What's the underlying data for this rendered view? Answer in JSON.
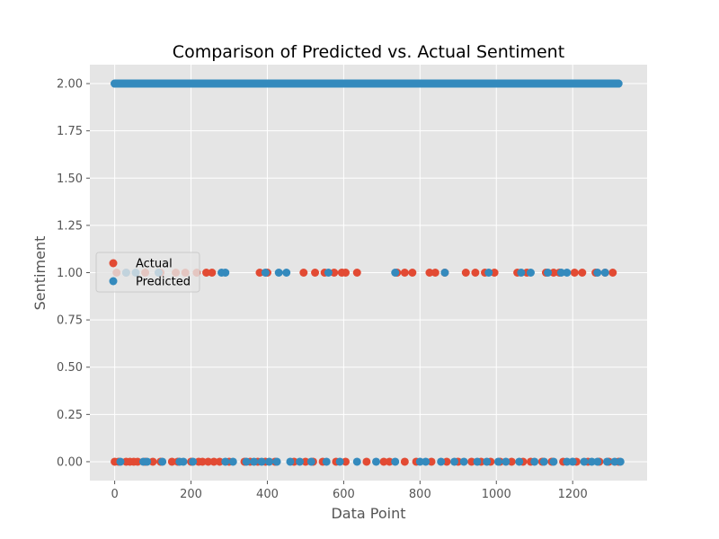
{
  "chart_data": {
    "type": "scatter",
    "title": "Comparison of Predicted vs. Actual Sentiment",
    "xlabel": "Data Point",
    "ylabel": "Sentiment",
    "xlim": [
      -65,
      1395
    ],
    "ylim": [
      -0.1,
      2.1
    ],
    "xticks": [
      0,
      200,
      400,
      600,
      800,
      1000,
      1200
    ],
    "yticks": [
      0.0,
      0.25,
      0.5,
      0.75,
      1.0,
      1.25,
      1.5,
      1.75,
      2.0
    ],
    "xtick_labels": [
      "0",
      "200",
      "400",
      "600",
      "800",
      "1000",
      "1200"
    ],
    "ytick_labels": [
      "0.00",
      "0.25",
      "0.50",
      "0.75",
      "1.00",
      "1.25",
      "1.50",
      "1.75",
      "2.00"
    ],
    "grid": true,
    "legend_position": "center-left",
    "colors": {
      "Actual": "#E24A33",
      "Predicted": "#348ABD",
      "background": "#E5E5E5",
      "grid": "#FFFFFF"
    },
    "series": [
      {
        "name": "Actual",
        "x": [
          5,
          30,
          80,
          120,
          160,
          185,
          215,
          240,
          255,
          380,
          400,
          495,
          525,
          550,
          575,
          595,
          605,
          635,
          740,
          760,
          780,
          825,
          840,
          865,
          920,
          945,
          970,
          995,
          1055,
          1080,
          1130,
          1150,
          1165,
          1205,
          1225,
          1260,
          1285,
          1305,
          0,
          10,
          30,
          40,
          50,
          60,
          80,
          100,
          120,
          150,
          165,
          200,
          220,
          230,
          245,
          260,
          275,
          300,
          340,
          355,
          375,
          395,
          420,
          470,
          500,
          520,
          545,
          580,
          605,
          660,
          705,
          720,
          760,
          790,
          830,
          870,
          900,
          935,
          960,
          985,
          1010,
          1040,
          1070,
          1090,
          1120,
          1145,
          1175,
          1210,
          1240,
          1270,
          1295,
          1320
        ],
        "y": [
          1,
          1,
          1,
          1,
          1,
          1,
          1,
          1,
          1,
          1,
          1,
          1,
          1,
          1,
          1,
          1,
          1,
          1,
          1,
          1,
          1,
          1,
          1,
          1,
          1,
          1,
          1,
          1,
          1,
          1,
          1,
          1,
          1,
          1,
          1,
          1,
          1,
          1,
          0,
          0,
          0,
          0,
          0,
          0,
          0,
          0,
          0,
          0,
          0,
          0,
          0,
          0,
          0,
          0,
          0,
          0,
          0,
          0,
          0,
          0,
          0,
          0,
          0,
          0,
          0,
          0,
          0,
          0,
          0,
          0,
          0,
          0,
          0,
          0,
          0,
          0,
          0,
          0,
          0,
          0,
          0,
          0,
          0,
          0,
          0,
          0,
          0,
          0,
          0,
          0
        ]
      },
      {
        "name": "Predicted",
        "x": [
          0,
          1320,
          30,
          55,
          115,
          280,
          290,
          395,
          430,
          450,
          560,
          735,
          865,
          980,
          1065,
          1090,
          1135,
          1170,
          1185,
          1265,
          1285,
          15,
          75,
          85,
          125,
          170,
          180,
          205,
          290,
          310,
          345,
          365,
          385,
          405,
          425,
          460,
          485,
          515,
          555,
          590,
          635,
          685,
          735,
          800,
          815,
          855,
          890,
          915,
          950,
          975,
          1005,
          1025,
          1060,
          1100,
          1125,
          1150,
          1185,
          1200,
          1230,
          1250,
          1265,
          1290,
          1310,
          1325
        ],
        "y": [
          2,
          2,
          1,
          1,
          1,
          1,
          1,
          1,
          1,
          1,
          1,
          1,
          1,
          1,
          1,
          1,
          1,
          1,
          1,
          1,
          1,
          0,
          0,
          0,
          0,
          0,
          0,
          0,
          0,
          0,
          0,
          0,
          0,
          0,
          0,
          0,
          0,
          0,
          0,
          0,
          0,
          0,
          0,
          0,
          0,
          0,
          0,
          0,
          0,
          0,
          0,
          0,
          0,
          0,
          0,
          0,
          0,
          0,
          0,
          0,
          0,
          0,
          0,
          0
        ]
      }
    ]
  }
}
